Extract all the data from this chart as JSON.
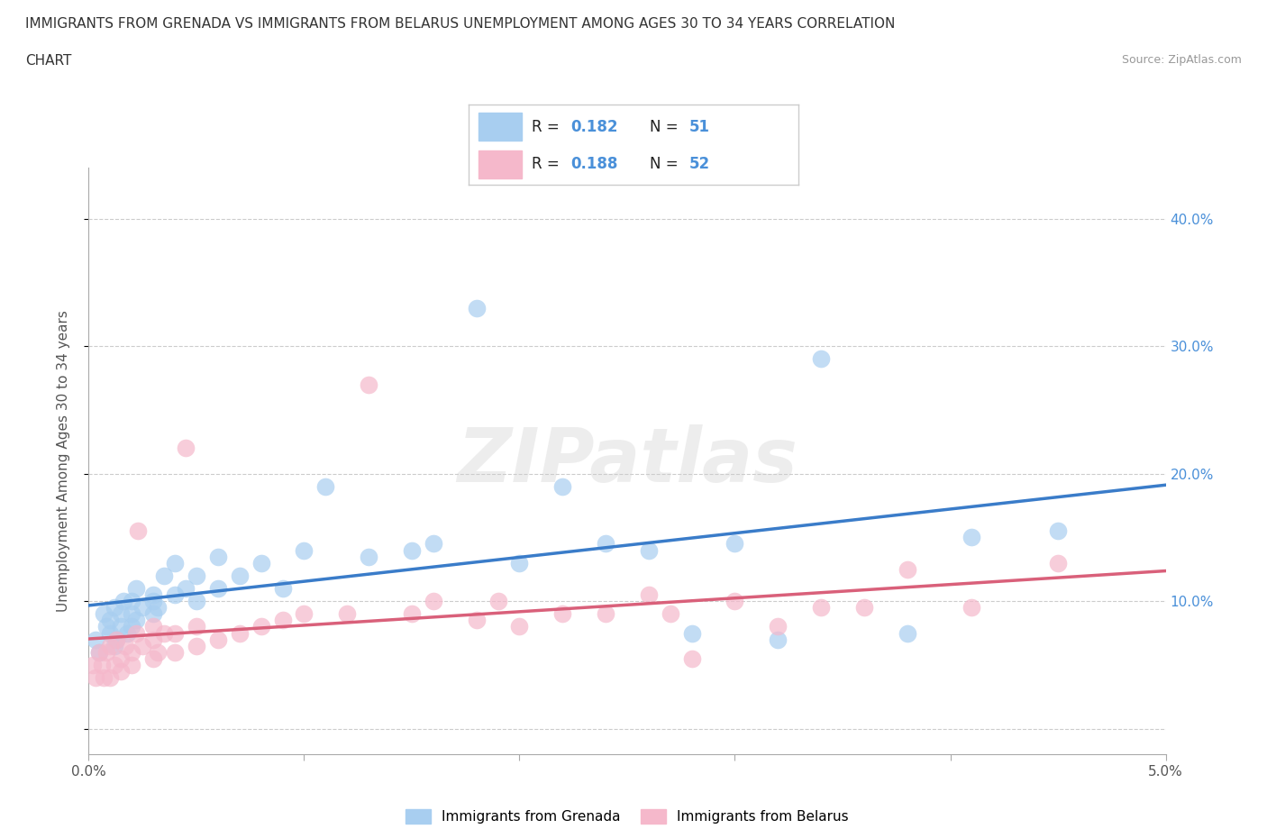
{
  "title_line1": "IMMIGRANTS FROM GRENADA VS IMMIGRANTS FROM BELARUS UNEMPLOYMENT AMONG AGES 30 TO 34 YEARS CORRELATION",
  "title_line2": "CHART",
  "source": "Source: ZipAtlas.com",
  "ylabel": "Unemployment Among Ages 30 to 34 years",
  "xlim": [
    0.0,
    0.05
  ],
  "ylim": [
    -0.02,
    0.44
  ],
  "xticks": [
    0.0,
    0.01,
    0.02,
    0.03,
    0.04,
    0.05
  ],
  "yticks": [
    0.0,
    0.1,
    0.2,
    0.3,
    0.4
  ],
  "xticklabels": [
    "0.0%",
    "",
    "",
    "",
    "",
    "5.0%"
  ],
  "yticklabels_right": [
    "",
    "10.0%",
    "20.0%",
    "30.0%",
    "40.0%"
  ],
  "legend_label1": "Immigrants from Grenada",
  "legend_label2": "Immigrants from Belarus",
  "R1": 0.182,
  "N1": 51,
  "R2": 0.188,
  "N2": 52,
  "color1": "#a8cef0",
  "color2": "#f5b8cb",
  "line_color1": "#3a7cc9",
  "line_color2": "#d9607a",
  "tick_color": "#4a90d9",
  "watermark": "ZIPatlas",
  "background_color": "#ffffff",
  "grenada_x": [
    0.0003,
    0.0005,
    0.0007,
    0.0008,
    0.001,
    0.001,
    0.0012,
    0.0012,
    0.0013,
    0.0015,
    0.0015,
    0.0016,
    0.0018,
    0.002,
    0.002,
    0.002,
    0.0022,
    0.0022,
    0.0025,
    0.003,
    0.003,
    0.003,
    0.0032,
    0.0035,
    0.004,
    0.004,
    0.0045,
    0.005,
    0.005,
    0.006,
    0.006,
    0.007,
    0.008,
    0.009,
    0.01,
    0.011,
    0.013,
    0.015,
    0.016,
    0.018,
    0.02,
    0.022,
    0.024,
    0.026,
    0.028,
    0.03,
    0.032,
    0.034,
    0.038,
    0.041,
    0.045
  ],
  "grenada_y": [
    0.07,
    0.06,
    0.09,
    0.08,
    0.075,
    0.085,
    0.065,
    0.095,
    0.07,
    0.08,
    0.09,
    0.1,
    0.075,
    0.08,
    0.09,
    0.1,
    0.085,
    0.11,
    0.095,
    0.09,
    0.1,
    0.105,
    0.095,
    0.12,
    0.105,
    0.13,
    0.11,
    0.1,
    0.12,
    0.11,
    0.135,
    0.12,
    0.13,
    0.11,
    0.14,
    0.19,
    0.135,
    0.14,
    0.145,
    0.33,
    0.13,
    0.19,
    0.145,
    0.14,
    0.075,
    0.145,
    0.07,
    0.29,
    0.075,
    0.15,
    0.155
  ],
  "belarus_x": [
    0.0002,
    0.0003,
    0.0005,
    0.0006,
    0.0007,
    0.0008,
    0.001,
    0.001,
    0.0012,
    0.0013,
    0.0015,
    0.0015,
    0.0017,
    0.002,
    0.002,
    0.0022,
    0.0023,
    0.0025,
    0.003,
    0.003,
    0.003,
    0.0032,
    0.0035,
    0.004,
    0.004,
    0.0045,
    0.005,
    0.005,
    0.006,
    0.007,
    0.008,
    0.009,
    0.01,
    0.012,
    0.013,
    0.015,
    0.016,
    0.018,
    0.019,
    0.02,
    0.022,
    0.024,
    0.026,
    0.027,
    0.028,
    0.03,
    0.032,
    0.034,
    0.036,
    0.038,
    0.041,
    0.045
  ],
  "belarus_y": [
    0.05,
    0.04,
    0.06,
    0.05,
    0.04,
    0.06,
    0.04,
    0.065,
    0.05,
    0.07,
    0.045,
    0.055,
    0.065,
    0.05,
    0.06,
    0.075,
    0.155,
    0.065,
    0.055,
    0.07,
    0.08,
    0.06,
    0.075,
    0.06,
    0.075,
    0.22,
    0.065,
    0.08,
    0.07,
    0.075,
    0.08,
    0.085,
    0.09,
    0.09,
    0.27,
    0.09,
    0.1,
    0.085,
    0.1,
    0.08,
    0.09,
    0.09,
    0.105,
    0.09,
    0.055,
    0.1,
    0.08,
    0.095,
    0.095,
    0.125,
    0.095,
    0.13
  ]
}
